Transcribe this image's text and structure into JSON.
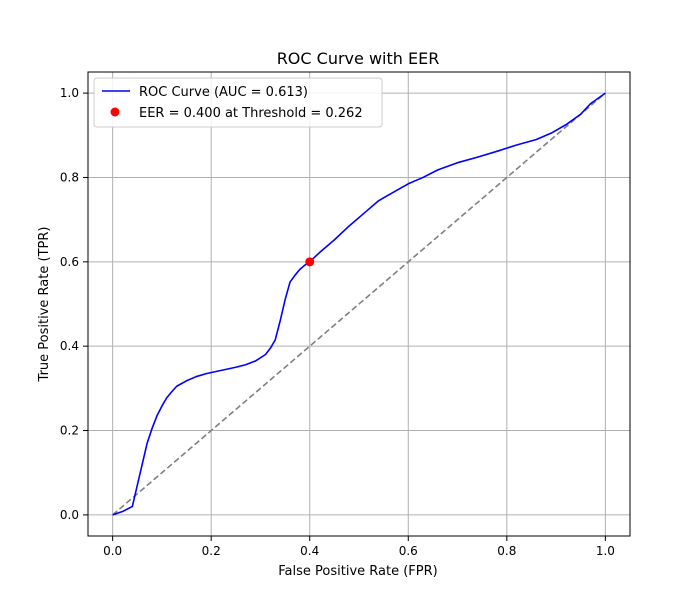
{
  "chart_data": {
    "type": "line",
    "title": "ROC Curve with EER",
    "xlabel": "False Positive Rate (FPR)",
    "ylabel": "True Positive Rate (TPR)",
    "xlim": [
      -0.05,
      1.05
    ],
    "ylim": [
      -0.05,
      1.05
    ],
    "xticks": [
      "0.0",
      "0.2",
      "0.4",
      "0.6",
      "0.8",
      "1.0"
    ],
    "yticks": [
      "0.0",
      "0.2",
      "0.4",
      "0.6",
      "0.8",
      "1.0"
    ],
    "grid": true,
    "legend_position": "top-left",
    "series": [
      {
        "name": "ROC Curve (AUC = 0.613)",
        "color": "#0000ff",
        "style": "solid",
        "x": [
          0.0,
          0.02,
          0.04,
          0.05,
          0.06,
          0.07,
          0.08,
          0.09,
          0.1,
          0.11,
          0.12,
          0.13,
          0.15,
          0.17,
          0.19,
          0.21,
          0.23,
          0.25,
          0.27,
          0.29,
          0.31,
          0.32,
          0.33,
          0.34,
          0.35,
          0.36,
          0.37,
          0.38,
          0.39,
          0.4,
          0.42,
          0.45,
          0.48,
          0.51,
          0.54,
          0.57,
          0.6,
          0.63,
          0.66,
          0.7,
          0.74,
          0.78,
          0.82,
          0.86,
          0.89,
          0.92,
          0.95,
          0.97,
          1.0
        ],
        "y": [
          0.0,
          0.008,
          0.02,
          0.07,
          0.12,
          0.17,
          0.205,
          0.235,
          0.258,
          0.278,
          0.292,
          0.305,
          0.318,
          0.328,
          0.335,
          0.34,
          0.345,
          0.35,
          0.356,
          0.365,
          0.38,
          0.395,
          0.415,
          0.46,
          0.51,
          0.552,
          0.568,
          0.582,
          0.592,
          0.6,
          0.622,
          0.652,
          0.685,
          0.715,
          0.745,
          0.765,
          0.785,
          0.8,
          0.818,
          0.835,
          0.848,
          0.862,
          0.877,
          0.89,
          0.905,
          0.925,
          0.95,
          0.975,
          1.0
        ]
      },
      {
        "name": "",
        "color": "#808080",
        "style": "dashed",
        "x": [
          0.0,
          1.0
        ],
        "y": [
          0.0,
          1.0
        ]
      }
    ],
    "points": [
      {
        "name": "EER = 0.400 at Threshold = 0.262",
        "color": "#ff0000",
        "x": 0.4,
        "y": 0.6
      }
    ]
  }
}
